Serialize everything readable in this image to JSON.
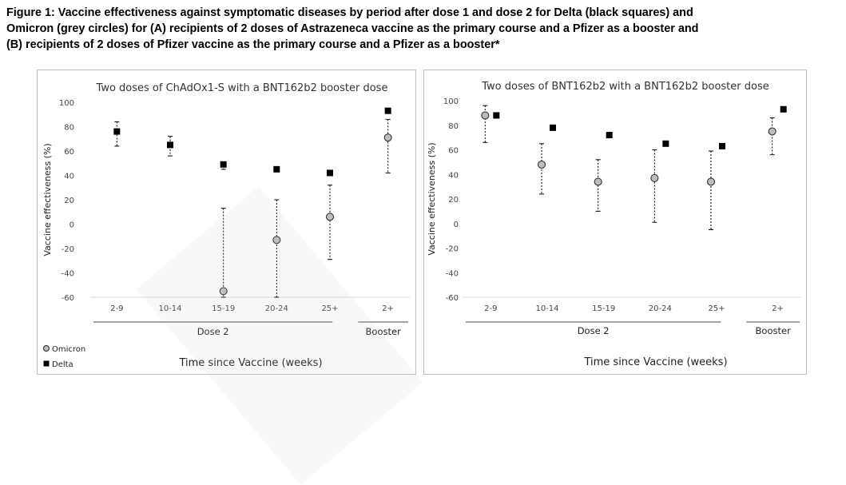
{
  "figure": {
    "caption_lines": [
      "Figure 1: Vaccine effectiveness against symptomatic diseases by period after dose 1 and dose 2 for Delta (black squares) and",
      "Omicron (grey circles) for (A) recipients of 2 doses of Astrazeneca vaccine as the primary course and a Pfizer as a booster and",
      "(B) recipients of 2 doses of Pfizer vaccine as the primary course and a Pfizer as a booster*"
    ]
  },
  "colors": {
    "omicron_fill": "#bdbdbd",
    "delta_fill": "#000000",
    "error_bar": "#000000",
    "axis": "#d9d9d9"
  },
  "chart_data": [
    {
      "type": "scatter",
      "title": "Two doses of ChAdOx1-S with a BNT162b2 booster dose",
      "ylabel": "Vaccine effectiveness (%)",
      "xlabel": "Time since Vaccine (weeks)",
      "ylim": [
        -60,
        100
      ],
      "yticks": [
        100,
        80,
        60,
        40,
        20,
        0,
        -20,
        -40,
        -60
      ],
      "categories": [
        "2-9",
        "10-14",
        "15-19",
        "20-24",
        "25+",
        "2+"
      ],
      "groups": [
        {
          "label": "Dose 2",
          "categories": [
            "2-9",
            "10-14",
            "15-19",
            "20-24",
            "25+"
          ]
        },
        {
          "label": "Booster",
          "categories": [
            "2+"
          ]
        }
      ],
      "legend": [
        {
          "name": "Omicron",
          "marker": "circle"
        },
        {
          "name": "Delta",
          "marker": "square"
        }
      ],
      "series": [
        {
          "name": "Omicron",
          "marker": "circle",
          "values": [
            null,
            null,
            -55,
            -13,
            6,
            71
          ],
          "ci_low": [
            null,
            null,
            -60,
            -60,
            -29,
            42
          ],
          "ci_high": [
            null,
            null,
            13,
            20,
            32,
            86
          ]
        },
        {
          "name": "Delta",
          "marker": "square",
          "values": [
            76,
            65,
            49,
            45,
            42,
            93
          ],
          "ci_low": [
            64,
            56,
            45,
            null,
            null,
            null
          ],
          "ci_high": [
            84,
            72,
            51,
            null,
            null,
            null
          ]
        }
      ]
    },
    {
      "type": "scatter",
      "title": "Two doses of BNT162b2 with a BNT162b2 booster dose",
      "ylabel": "Vaccine effectiveness (%)",
      "xlabel": "Time since Vaccine (weeks)",
      "ylim": [
        -60,
        100
      ],
      "yticks": [
        100,
        80,
        60,
        40,
        20,
        0,
        -20,
        -40,
        -60
      ],
      "categories": [
        "2-9",
        "10-14",
        "15-19",
        "20-24",
        "25+",
        "2+"
      ],
      "groups": [
        {
          "label": "Dose 2",
          "categories": [
            "2-9",
            "10-14",
            "15-19",
            "20-24",
            "25+"
          ]
        },
        {
          "label": "Booster",
          "categories": [
            "2+"
          ]
        }
      ],
      "series": [
        {
          "name": "Omicron",
          "marker": "circle",
          "values": [
            88,
            48,
            34,
            37,
            34,
            75
          ],
          "ci_low": [
            66,
            24,
            10,
            1,
            -5,
            56
          ],
          "ci_high": [
            96,
            65,
            52,
            60,
            59,
            86
          ]
        },
        {
          "name": "Delta",
          "marker": "square",
          "values": [
            88,
            78,
            72,
            65,
            63,
            93
          ],
          "ci_low": [
            null,
            null,
            null,
            null,
            null,
            null
          ],
          "ci_high": [
            null,
            null,
            null,
            null,
            null,
            null
          ]
        }
      ]
    }
  ]
}
